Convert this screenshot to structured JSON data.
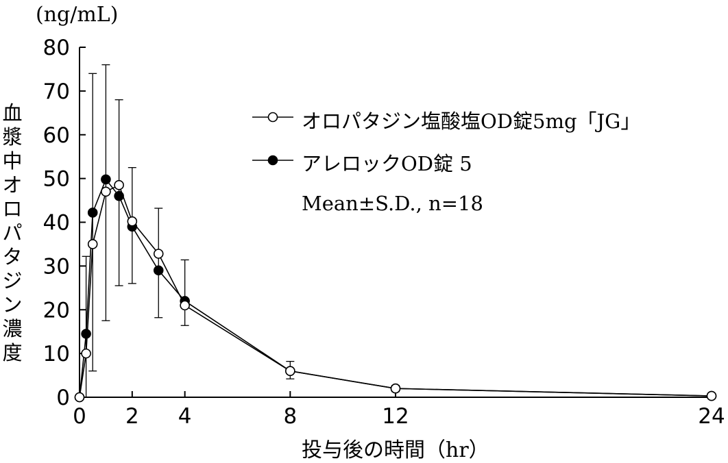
{
  "chart_data": {
    "type": "line",
    "unit_label": "(ng/mL)",
    "ylabel": "血漿中オロパタジン濃度",
    "xlabel": "投与後の時間（hr）",
    "ylim": [
      0,
      80
    ],
    "yticks": [
      0,
      10,
      20,
      30,
      40,
      50,
      60,
      70,
      80
    ],
    "xticks": [
      0,
      2,
      4,
      8,
      12,
      24
    ],
    "xlim": [
      0,
      24
    ],
    "note": "Mean±S.D., n=18",
    "series": [
      {
        "name": "オロパタジン塩酸塩OD錠5mg「JG」",
        "marker": "open-circle",
        "x": [
          0,
          0.25,
          0.5,
          1,
          1.5,
          2,
          3,
          4,
          8,
          12,
          24
        ],
        "y": [
          0,
          10,
          35,
          47,
          48.5,
          40.2,
          32.8,
          21,
          6,
          2,
          0.3
        ],
        "sd_upper": [
          null,
          32.2,
          74,
          76,
          68,
          52.5,
          43.2,
          31.4,
          8.2,
          2.7,
          0.7
        ],
        "sd_lower": [
          null,
          0,
          6,
          17.5,
          25.5,
          26,
          18.2,
          16.4,
          4.2,
          1.3,
          0
        ]
      },
      {
        "name": "アレロックOD錠 5",
        "marker": "filled-circle",
        "x": [
          0,
          0.25,
          0.5,
          1,
          1.5,
          2,
          3,
          4,
          8,
          12,
          24
        ],
        "y": [
          0,
          14.5,
          42.2,
          49.8,
          46,
          39,
          29,
          22,
          6,
          2,
          0.3
        ]
      }
    ]
  }
}
